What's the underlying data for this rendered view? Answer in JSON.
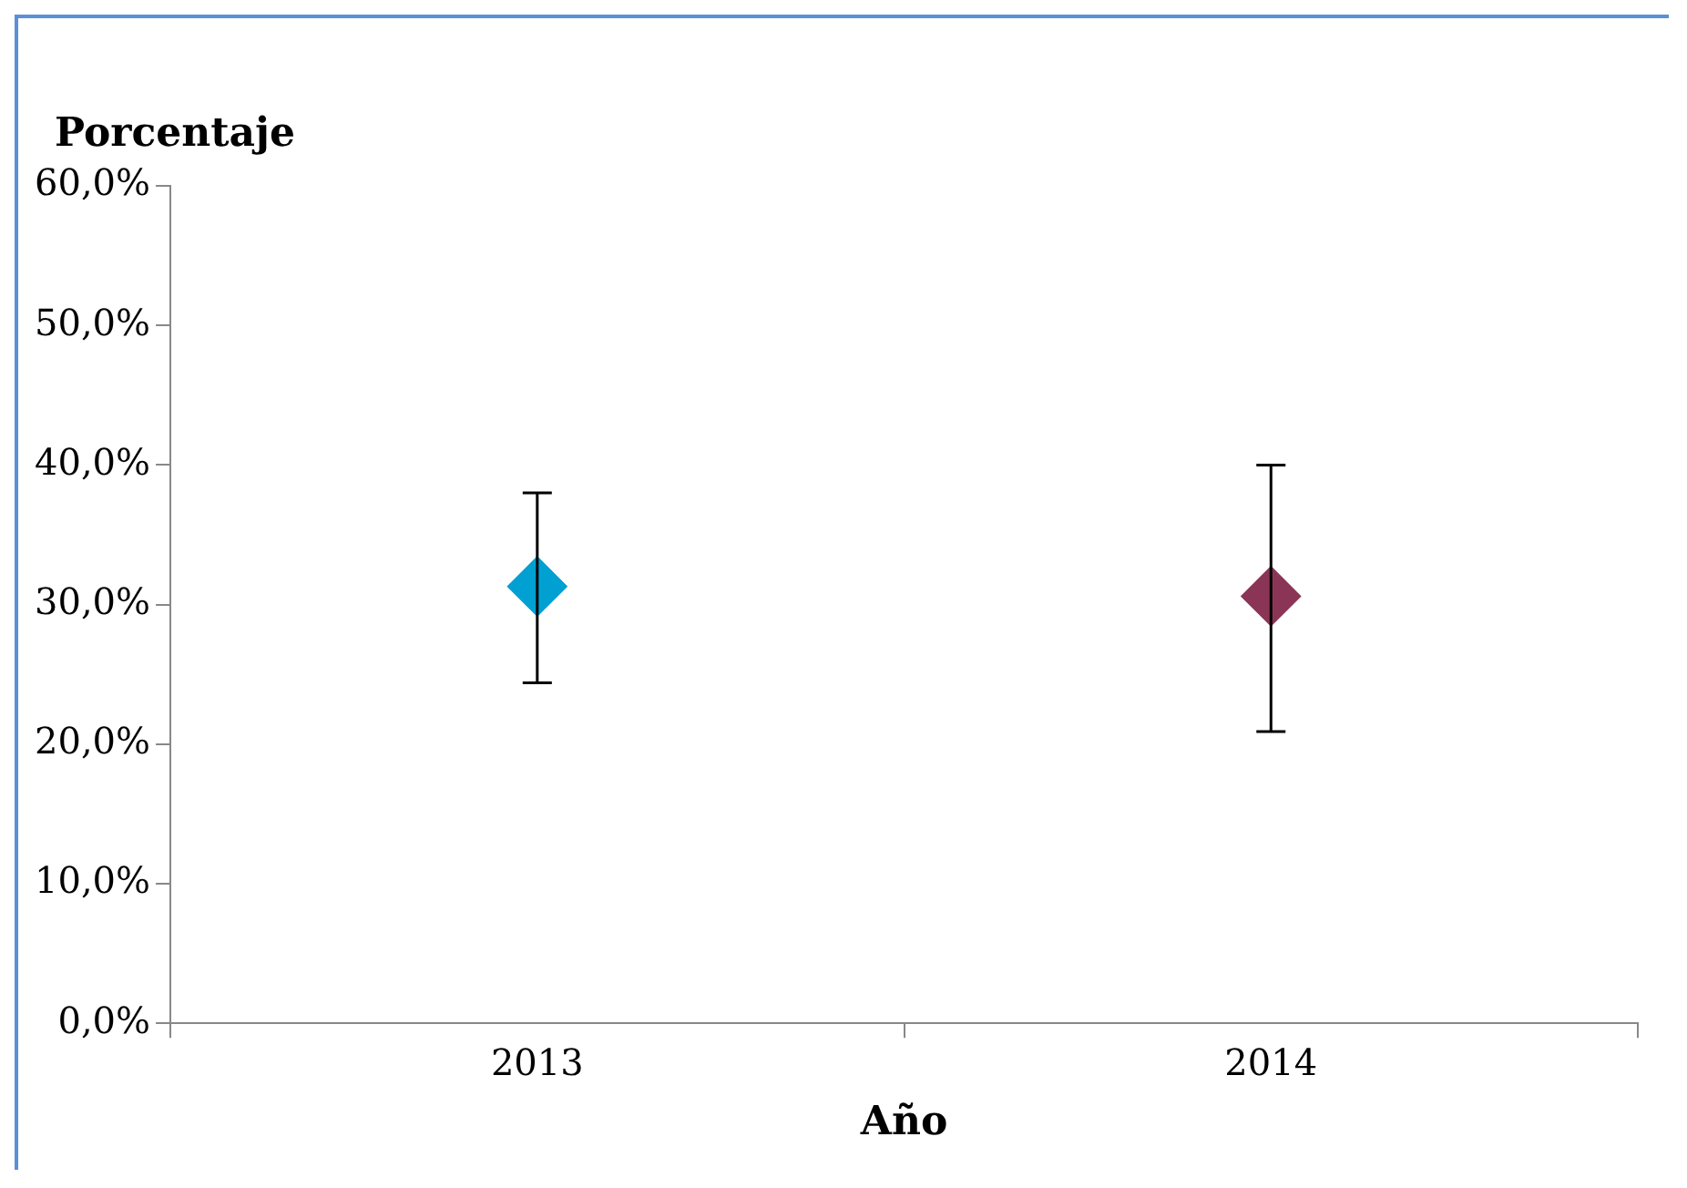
{
  "chart_data": {
    "type": "scatter",
    "ylabel": "Porcentaje",
    "xlabel": "Año",
    "categories": [
      "2013",
      "2014"
    ],
    "values": [
      31.3,
      30.6
    ],
    "colors": [
      "#00a0d2",
      "#8b3556"
    ],
    "errors": [
      [
        24.4,
        38.0
      ],
      [
        20.9,
        40.0
      ]
    ],
    "ylim": [
      0,
      60
    ],
    "yticks": [
      {
        "value": 0,
        "label": "0,0%"
      },
      {
        "value": 10,
        "label": "10,0%"
      },
      {
        "value": 20,
        "label": "20,0%"
      },
      {
        "value": 30,
        "label": "30,0%"
      },
      {
        "value": 40,
        "label": "40,0%"
      },
      {
        "value": 50,
        "label": "50,0%"
      },
      {
        "value": 60,
        "label": "60,0%"
      }
    ],
    "marker": "diamond",
    "legend": false,
    "grid": false
  }
}
